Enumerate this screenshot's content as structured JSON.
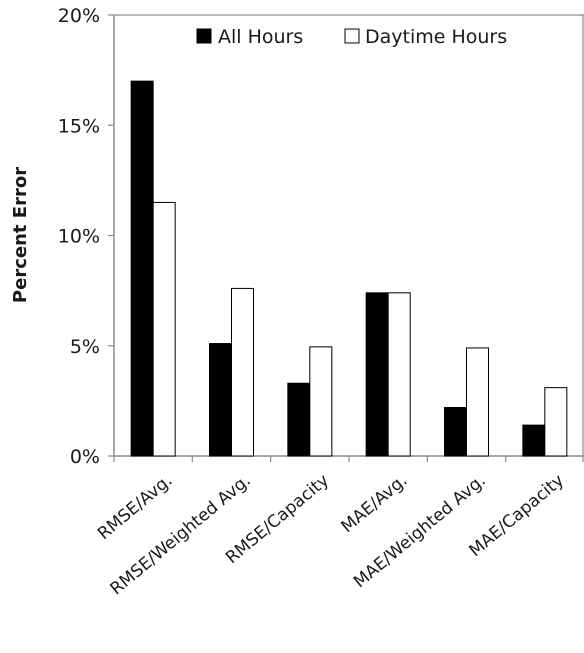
{
  "chart_data": {
    "type": "bar",
    "title": "",
    "xlabel": "",
    "ylabel": "Percent Error",
    "ylim": [
      0,
      20
    ],
    "yticks": [
      0,
      5,
      10,
      15,
      20
    ],
    "ytick_labels": [
      "0%",
      "5%",
      "10%",
      "15%",
      "20%"
    ],
    "categories": [
      "RMSE/Avg.",
      "RMSE/Weighted Avg.",
      "RMSE/Capacity",
      "MAE/Avg.",
      "MAE/Weighted Avg.",
      "MAE/Capacity"
    ],
    "series": [
      {
        "name": "All Hours",
        "color": "#000000",
        "values": [
          17.0,
          5.1,
          3.3,
          7.4,
          2.2,
          1.4
        ]
      },
      {
        "name": "Daytime Hours",
        "color": "#ffffff",
        "values": [
          11.5,
          7.6,
          4.95,
          7.4,
          4.9,
          3.1
        ]
      }
    ],
    "grid": false,
    "legend_position": "top"
  }
}
